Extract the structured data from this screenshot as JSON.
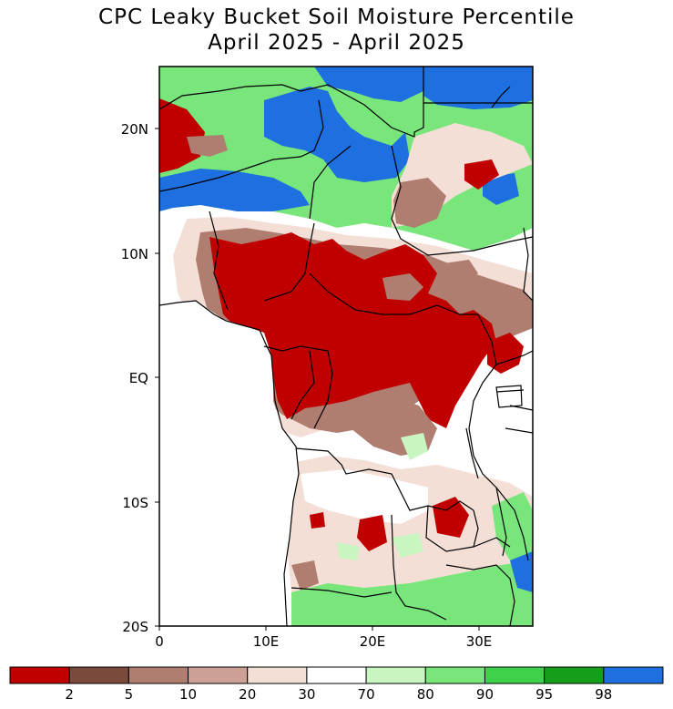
{
  "title": {
    "line1": "CPC Leaky Bucket Soil Moisture Percentile",
    "line2": "April 2025 - April 2025"
  },
  "axes": {
    "y_ticks": [
      "20N",
      "10N",
      "EQ",
      "10S",
      "20S"
    ],
    "x_ticks": [
      "0",
      "10E",
      "20E",
      "30E"
    ]
  },
  "legend": {
    "colors": [
      "#c00000",
      "#7a4a3c",
      "#b07e70",
      "#cca095",
      "#f3dfd6",
      "#ffffff",
      "#c8f5c0",
      "#78e67a",
      "#3fd14a",
      "#159e1a",
      "#1e6fe0"
    ],
    "labels": [
      "2",
      "5",
      "10",
      "20",
      "30",
      "70",
      "80",
      "90",
      "95",
      "98"
    ]
  },
  "map_colors": {
    "dry_extreme": "#c00000",
    "dry_moderate": "#b07e70",
    "dry_light": "#cca095",
    "dry_slight": "#f3dfd6",
    "normal": "#ffffff",
    "wet_light": "#c8f5c0",
    "wet_moderate": "#78e67a",
    "wet_strong": "#3fd14a",
    "wet_extreme": "#1e6fe0"
  }
}
